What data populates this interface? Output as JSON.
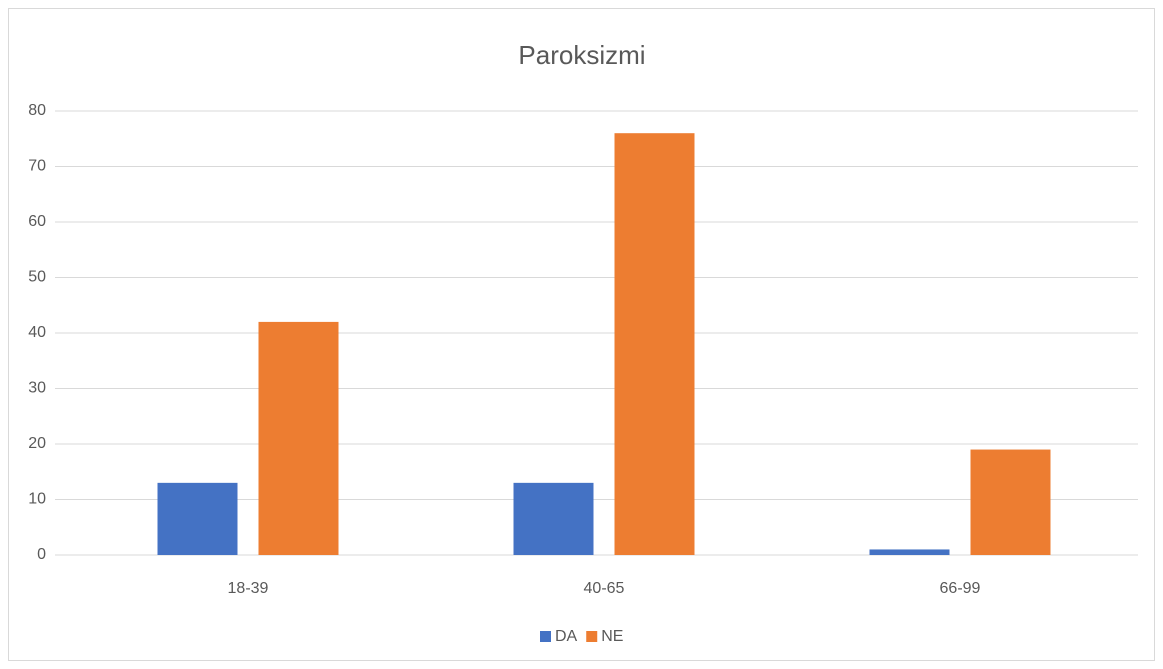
{
  "chart_data": {
    "type": "bar",
    "title": "Paroksizmi",
    "categories": [
      "18-39",
      "40-65",
      "66-99"
    ],
    "series": [
      {
        "name": "DA",
        "color": "#4472c4",
        "values": [
          13,
          13,
          1
        ]
      },
      {
        "name": "NE",
        "color": "#ed7d31",
        "values": [
          42,
          76,
          19
        ]
      }
    ],
    "ylim": [
      0,
      80
    ],
    "yticks": [
      0,
      10,
      20,
      30,
      40,
      50,
      60,
      70,
      80
    ],
    "grid": true,
    "legend": "bottom"
  }
}
